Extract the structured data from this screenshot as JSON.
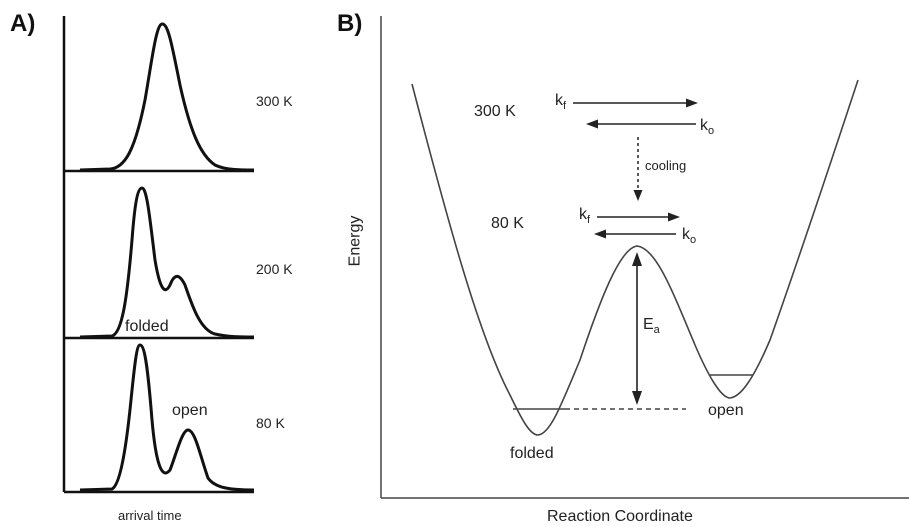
{
  "panel_a": {
    "label": "A)",
    "x_axis_label": "arrival time",
    "traces": [
      {
        "temperature": "300 K"
      },
      {
        "temperature": "200 K",
        "annotation": "folded"
      },
      {
        "temperature": "80 K",
        "annotation": "open"
      }
    ]
  },
  "panel_b": {
    "label": "B)",
    "y_axis_label": "Energy",
    "x_axis_label": "Reaction Coordinate",
    "high_temp": "300 K",
    "low_temp": "80 K",
    "rate_forward": {
      "base": "k",
      "sub": "f"
    },
    "rate_open": {
      "base": "k",
      "sub": "o"
    },
    "cooling_label": "cooling",
    "activation_energy": {
      "base": "E",
      "sub": "a"
    },
    "well_folded": "folded",
    "well_open": "open"
  }
}
